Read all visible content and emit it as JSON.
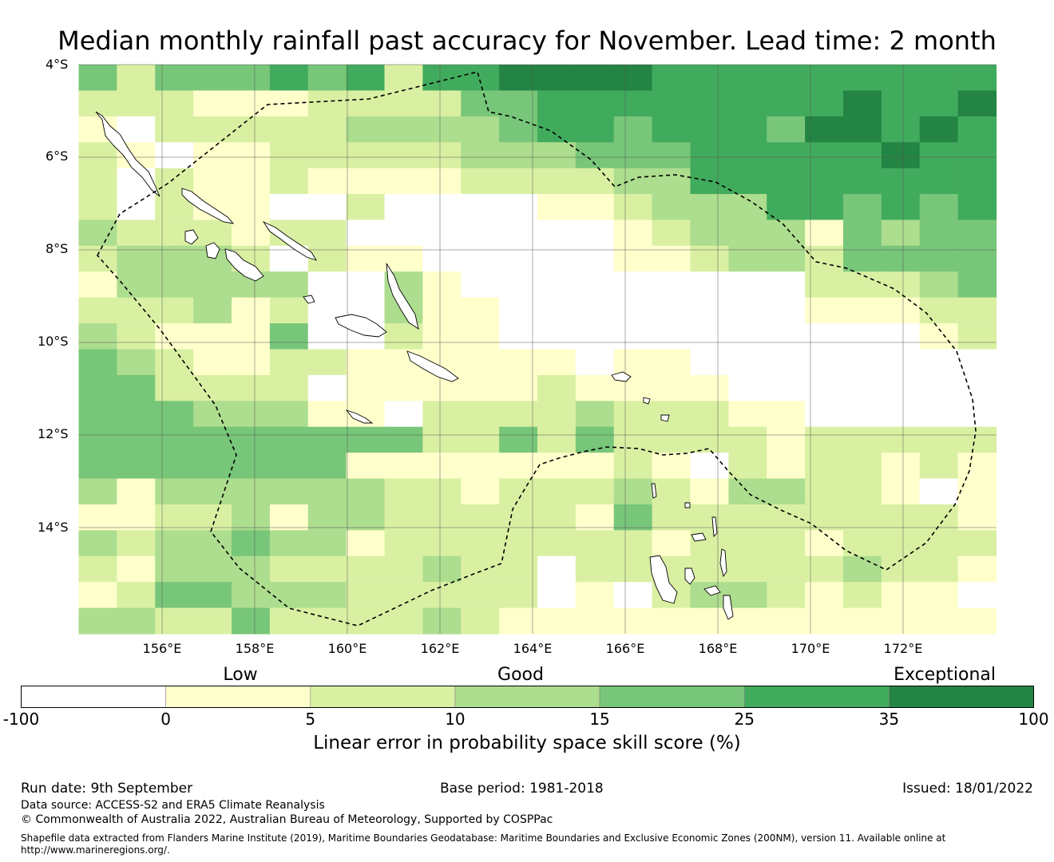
{
  "title": "Median monthly rainfall past accuracy for November. Lead time: 2 month",
  "map": {
    "lat_labels": [
      "4°S",
      "6°S",
      "8°S",
      "10°S",
      "12°S",
      "14°S"
    ],
    "lon_labels": [
      "156°E",
      "158°E",
      "160°E",
      "162°E",
      "164°E",
      "166°E",
      "168°E",
      "170°E",
      "172°E"
    ],
    "extent": {
      "lon_min": 154.2,
      "lon_max": 174.0,
      "lat_min": -4.0,
      "lat_max": -16.3
    },
    "cell_size_deg": 0.83,
    "grid_lines": true
  },
  "colorbar": {
    "categories": [
      "Low",
      "Good",
      "Exceptional"
    ],
    "ticks": [
      "-100",
      "0",
      "5",
      "10",
      "15",
      "25",
      "35",
      "100"
    ],
    "colors": [
      "#ffffff",
      "#ffffcc",
      "#d9f0a3",
      "#addd8e",
      "#78c679",
      "#41ab5d",
      "#238443"
    ],
    "title": "Linear error in probability space skill score (%)"
  },
  "footer": {
    "run_date": "Run date: 9th September",
    "base_period": "Base period: 1981-2018",
    "issued": "Issued: 18/01/2022",
    "data_source": "Data source: ACCESS-S2 and ERA5 Climate Reanalysis",
    "copyright": "© Commonwealth of Australia 2022, Australian Bureau of Meteorology, Supported by COSPPac",
    "shapefile_line1": "Shapefile data extracted from Flanders Marine Institute (2019), Maritime Boundaries Geodatabase: Maritime Boundaries and Exclusive Economic Zones (200NM), version 11. Available online at",
    "shapefile_line2": "http://www.marineregions.org/."
  },
  "chart_data": {
    "type": "heatmap",
    "x_label_positions_deg": [
      156,
      158,
      160,
      162,
      164,
      166,
      168,
      170,
      172
    ],
    "y_label_positions_deg": [
      -4,
      -6,
      -8,
      -10,
      -12,
      -14
    ],
    "class_bounds": [
      -100,
      0,
      5,
      10,
      15,
      25,
      35,
      100
    ],
    "rows_note": "class index per cell (0=-100..0, 1=0..5, 2=5..10, 3=10..15, 4=15..25, 5=25..35, 6=35..100), rows from north to south",
    "grid": [
      [
        4,
        2,
        4,
        4,
        4,
        5,
        4,
        5,
        2,
        5,
        5,
        6,
        6,
        6,
        6,
        5,
        5,
        5,
        5,
        5,
        5,
        5,
        5,
        5
      ],
      [
        2,
        2,
        2,
        1,
        1,
        1,
        2,
        2,
        2,
        2,
        4,
        4,
        5,
        5,
        5,
        5,
        5,
        5,
        5,
        5,
        6,
        5,
        5,
        6
      ],
      [
        1,
        0,
        2,
        2,
        2,
        2,
        2,
        3,
        3,
        3,
        3,
        4,
        5,
        5,
        4,
        5,
        5,
        5,
        4,
        6,
        6,
        5,
        6,
        5
      ],
      [
        2,
        1,
        0,
        1,
        1,
        2,
        2,
        2,
        2,
        2,
        3,
        3,
        3,
        4,
        4,
        4,
        5,
        5,
        5,
        5,
        5,
        6,
        5,
        5
      ],
      [
        2,
        0,
        2,
        1,
        1,
        2,
        1,
        1,
        1,
        1,
        2,
        2,
        2,
        2,
        3,
        3,
        5,
        5,
        5,
        5,
        5,
        5,
        5,
        5
      ],
      [
        2,
        0,
        2,
        1,
        1,
        0,
        0,
        2,
        0,
        0,
        0,
        0,
        1,
        1,
        2,
        3,
        3,
        3,
        5,
        5,
        4,
        5,
        4,
        5
      ],
      [
        3,
        2,
        2,
        2,
        1,
        2,
        2,
        0,
        0,
        0,
        0,
        0,
        0,
        0,
        1,
        2,
        3,
        3,
        3,
        1,
        4,
        3,
        4,
        4
      ],
      [
        2,
        3,
        3,
        3,
        2,
        0,
        2,
        1,
        1,
        0,
        0,
        0,
        0,
        0,
        1,
        1,
        2,
        3,
        3,
        2,
        4,
        4,
        4,
        4
      ],
      [
        1,
        3,
        3,
        3,
        3,
        3,
        0,
        0,
        3,
        1,
        0,
        0,
        0,
        0,
        0,
        0,
        0,
        0,
        0,
        2,
        2,
        2,
        3,
        4
      ],
      [
        2,
        2,
        2,
        3,
        1,
        2,
        0,
        0,
        3,
        1,
        1,
        0,
        0,
        0,
        0,
        0,
        0,
        0,
        0,
        1,
        1,
        1,
        2,
        2
      ],
      [
        3,
        2,
        1,
        1,
        1,
        4,
        0,
        0,
        2,
        1,
        1,
        0,
        0,
        0,
        0,
        0,
        0,
        0,
        0,
        0,
        0,
        0,
        1,
        2
      ],
      [
        4,
        3,
        2,
        1,
        1,
        2,
        2,
        1,
        1,
        1,
        1,
        1,
        1,
        0,
        1,
        1,
        0,
        0,
        0,
        0,
        0,
        0,
        0,
        0
      ],
      [
        4,
        4,
        2,
        2,
        2,
        2,
        0,
        1,
        1,
        1,
        1,
        1,
        2,
        1,
        1,
        1,
        1,
        0,
        0,
        0,
        0,
        0,
        0,
        0
      ],
      [
        4,
        4,
        4,
        3,
        3,
        3,
        1,
        1,
        0,
        2,
        2,
        2,
        2,
        3,
        2,
        2,
        2,
        1,
        1,
        0,
        0,
        0,
        0,
        0
      ],
      [
        4,
        4,
        4,
        4,
        4,
        4,
        4,
        4,
        4,
        2,
        2,
        4,
        2,
        4,
        2,
        2,
        2,
        2,
        1,
        2,
        2,
        2,
        2,
        2
      ],
      [
        4,
        4,
        4,
        4,
        4,
        4,
        4,
        1,
        1,
        1,
        1,
        1,
        1,
        1,
        2,
        1,
        0,
        2,
        1,
        2,
        2,
        1,
        2,
        1
      ],
      [
        3,
        1,
        3,
        3,
        3,
        3,
        3,
        3,
        2,
        2,
        1,
        2,
        2,
        2,
        3,
        2,
        1,
        3,
        3,
        2,
        2,
        1,
        0,
        1
      ],
      [
        1,
        1,
        2,
        2,
        3,
        1,
        3,
        3,
        2,
        2,
        2,
        2,
        2,
        1,
        4,
        2,
        2,
        2,
        2,
        2,
        2,
        2,
        2,
        1
      ],
      [
        3,
        2,
        3,
        3,
        4,
        3,
        3,
        1,
        2,
        2,
        2,
        2,
        2,
        2,
        2,
        1,
        2,
        2,
        2,
        1,
        2,
        2,
        2,
        2
      ],
      [
        2,
        1,
        3,
        3,
        3,
        2,
        2,
        2,
        2,
        3,
        2,
        2,
        0,
        2,
        2,
        2,
        2,
        2,
        2,
        2,
        3,
        2,
        2,
        1
      ],
      [
        1,
        2,
        4,
        4,
        3,
        3,
        3,
        2,
        2,
        2,
        2,
        2,
        0,
        1,
        0,
        2,
        3,
        3,
        2,
        1,
        2,
        1,
        1,
        0
      ],
      [
        3,
        3,
        2,
        2,
        4,
        2,
        2,
        2,
        2,
        3,
        2,
        1,
        1,
        1,
        1,
        1,
        1,
        1,
        1,
        1,
        1,
        1,
        1,
        1
      ]
    ]
  }
}
